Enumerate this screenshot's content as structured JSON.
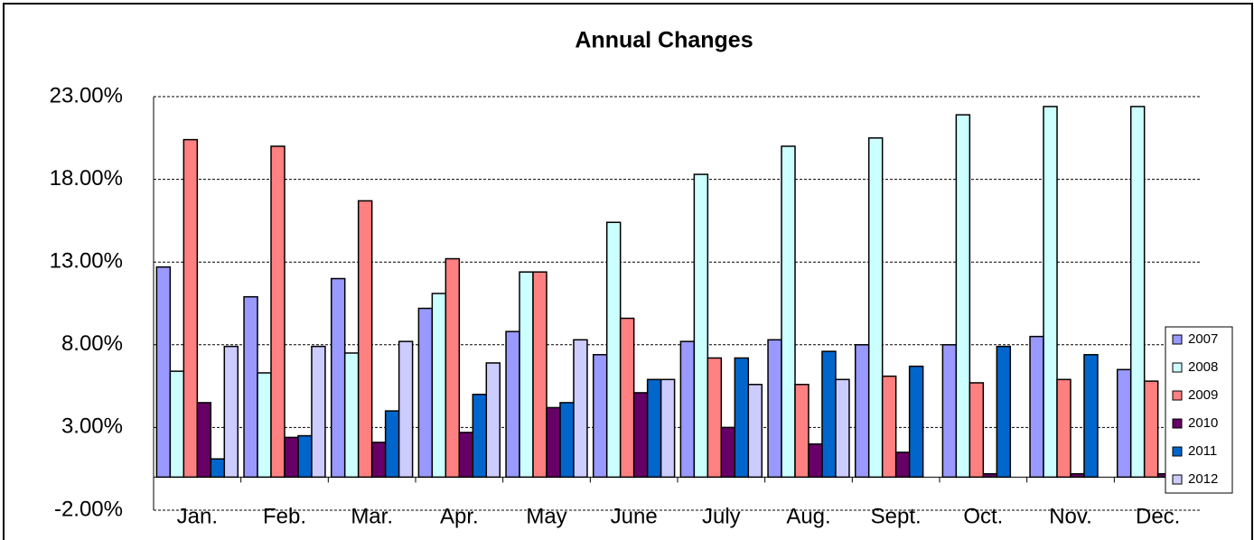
{
  "chart_data": {
    "type": "bar",
    "title": "Annual Changes",
    "categories": [
      "Jan.",
      "Feb.",
      "Mar.",
      "Apr.",
      "May",
      "June",
      "July",
      "Aug.",
      "Sept.",
      "Oct.",
      "Nov.",
      "Dec."
    ],
    "series": [
      {
        "name": "2007",
        "color": "#9999ff",
        "values": [
          12.7,
          10.9,
          12.0,
          10.2,
          8.8,
          7.4,
          8.2,
          8.3,
          8.0,
          8.0,
          8.5,
          6.5
        ]
      },
      {
        "name": "2008",
        "color": "#ccffff",
        "values": [
          6.4,
          6.3,
          7.5,
          11.1,
          12.4,
          15.4,
          18.3,
          20.0,
          20.5,
          21.9,
          22.4,
          22.4
        ]
      },
      {
        "name": "2009",
        "color": "#ff8080",
        "values": [
          20.4,
          20.0,
          16.7,
          13.2,
          12.4,
          9.6,
          7.2,
          5.6,
          6.1,
          5.7,
          5.9,
          5.8
        ]
      },
      {
        "name": "2010",
        "color": "#660066",
        "values": [
          4.5,
          2.4,
          2.1,
          2.7,
          4.2,
          5.1,
          3.0,
          2.0,
          1.5,
          0.2,
          0.2,
          0.2
        ]
      },
      {
        "name": "2011",
        "color": "#0066cc",
        "values": [
          1.1,
          2.5,
          4.0,
          5.0,
          4.5,
          5.9,
          7.2,
          7.6,
          6.7,
          7.9,
          7.4,
          null
        ]
      },
      {
        "name": "2012",
        "color": "#ccccff",
        "values": [
          7.9,
          7.9,
          8.2,
          6.9,
          8.3,
          5.9,
          5.6,
          5.9,
          null,
          null,
          null,
          null
        ]
      }
    ],
    "ylim": [
      -2,
      23
    ],
    "yticks": [
      {
        "value": -2,
        "label": "-2.00%"
      },
      {
        "value": 3,
        "label": "3.00%"
      },
      {
        "value": 8,
        "label": "8.00%"
      },
      {
        "value": 13,
        "label": "13.00%"
      },
      {
        "value": 18,
        "label": "18.00%"
      },
      {
        "value": 23,
        "label": "23.00%"
      }
    ],
    "grid": true
  }
}
